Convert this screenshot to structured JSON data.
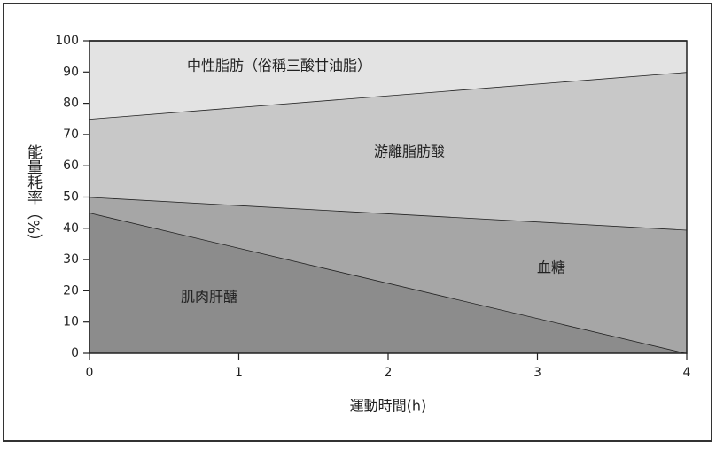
{
  "chart_data": {
    "type": "stacked_area",
    "x": [
      0,
      4
    ],
    "series": [
      {
        "name": "肌肉肝醣",
        "color": "#8c8c8c",
        "values": [
          45,
          0
        ]
      },
      {
        "name": "血糖",
        "color": "#a6a6a6",
        "values": [
          5,
          39.5
        ]
      },
      {
        "name": "游離脂肪酸",
        "color": "#c8c8c8",
        "values": [
          25,
          50.5
        ]
      },
      {
        "name": "中性脂肪（俗稱三酸甘油脂）",
        "color": "#e3e3e3",
        "values": [
          25,
          10
        ]
      }
    ],
    "xlim": [
      0,
      4
    ],
    "xticks": [
      0,
      1,
      2,
      3,
      4
    ],
    "ylim": [
      0,
      100
    ],
    "yticks": [
      0,
      10,
      20,
      30,
      40,
      50,
      60,
      70,
      80,
      90,
      100
    ],
    "x_label": "運動時間(h)",
    "y_label": "能量耗率（%）"
  }
}
